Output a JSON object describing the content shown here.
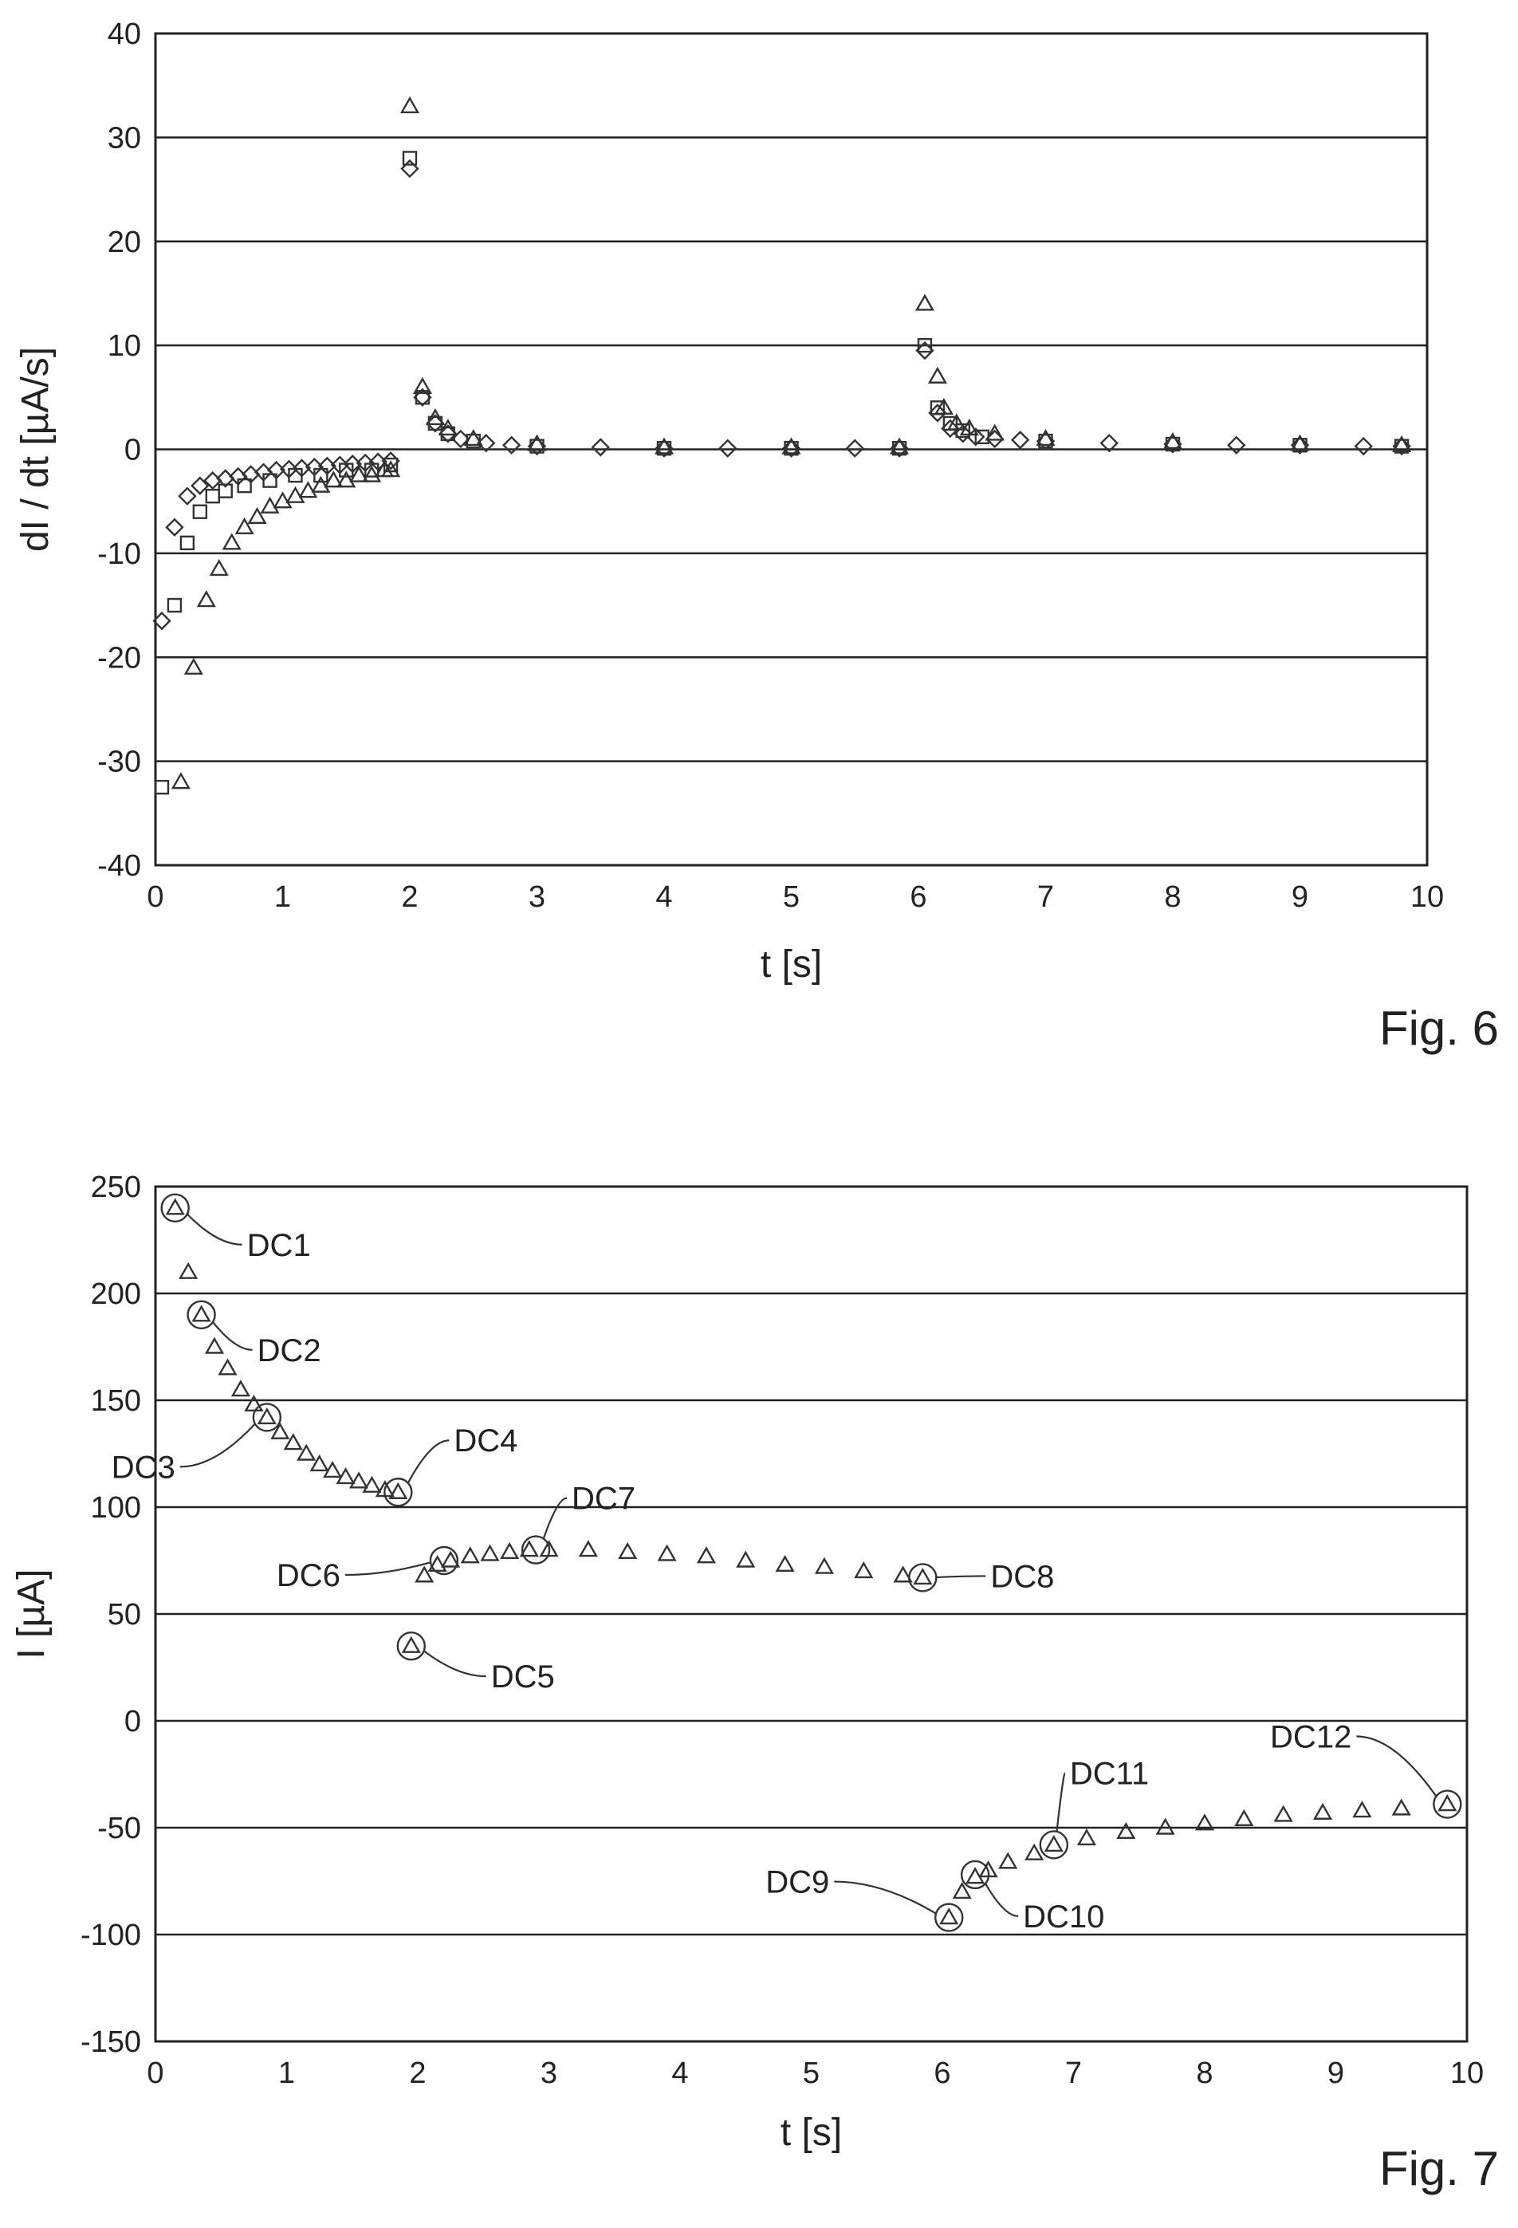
{
  "figures": [
    {
      "label": "Fig. 6"
    },
    {
      "label": "Fig. 7"
    }
  ],
  "chart_data": [
    {
      "type": "scatter",
      "figure_label": "Fig. 6",
      "xlabel": "t [s]",
      "ylabel": "dI / dt [µA/s]",
      "xlim": [
        0,
        10
      ],
      "ylim": [
        -40,
        40
      ],
      "x_ticks": [
        "0",
        "1",
        "2",
        "3",
        "4",
        "5",
        "6",
        "7",
        "8",
        "9",
        "10"
      ],
      "y_ticks": [
        "40",
        "30",
        "20",
        "10",
        "0",
        "-10",
        "-20",
        "-30",
        "-40"
      ],
      "grid": "horizontal",
      "series": [
        {
          "marker": "triangle",
          "x": [
            0.2,
            0.3,
            0.4,
            0.5,
            0.6,
            0.7,
            0.8,
            0.9,
            1.0,
            1.1,
            1.2,
            1.3,
            1.4,
            1.5,
            1.6,
            1.7,
            1.8,
            1.85,
            2.0,
            2.1,
            2.2,
            2.3,
            2.5,
            3.0,
            4.0,
            5.0,
            5.85,
            6.05,
            6.15,
            6.2,
            6.3,
            6.4,
            6.6,
            7.0,
            8.0,
            9.0,
            9.8
          ],
          "y": [
            -32,
            -21,
            -14.5,
            -11.5,
            -9,
            -7.5,
            -6.5,
            -5.5,
            -5,
            -4.5,
            -4,
            -3.5,
            -3,
            -3,
            -2.5,
            -2.5,
            -2,
            -2,
            33,
            6,
            3,
            2,
            1,
            0.5,
            0.2,
            0.2,
            0.2,
            14,
            7,
            4,
            2.5,
            2,
            1.5,
            1,
            0.7,
            0.5,
            0.4
          ]
        },
        {
          "marker": "square",
          "x": [
            0.05,
            0.15,
            0.25,
            0.35,
            0.45,
            0.55,
            0.7,
            0.9,
            1.1,
            1.3,
            1.5,
            1.7,
            1.85,
            2.0,
            2.1,
            2.2,
            2.3,
            2.5,
            3.0,
            4.0,
            5.0,
            5.85,
            6.05,
            6.15,
            6.25,
            6.35,
            6.5,
            7.0,
            8.0,
            9.0,
            9.8
          ],
          "y": [
            -32.5,
            -15,
            -9,
            -6,
            -4.5,
            -4,
            -3.5,
            -3,
            -2.5,
            -2.5,
            -2,
            -2,
            -1.5,
            28,
            5,
            2.5,
            1.5,
            0.8,
            0.3,
            0.1,
            0.1,
            0.1,
            10,
            4,
            2.5,
            1.8,
            1.2,
            0.8,
            0.5,
            0.4,
            0.3
          ]
        },
        {
          "marker": "diamond",
          "x": [
            0.05,
            0.15,
            0.25,
            0.35,
            0.45,
            0.55,
            0.65,
            0.75,
            0.85,
            0.95,
            1.05,
            1.15,
            1.25,
            1.35,
            1.45,
            1.55,
            1.65,
            1.75,
            1.85,
            2.0,
            2.1,
            2.2,
            2.3,
            2.4,
            2.6,
            2.8,
            3.0,
            3.5,
            4.0,
            4.5,
            5.0,
            5.5,
            5.85,
            6.05,
            6.15,
            6.25,
            6.35,
            6.45,
            6.6,
            6.8,
            7.0,
            7.5,
            8.0,
            8.5,
            9.0,
            9.5,
            9.8
          ],
          "y": [
            -16.5,
            -7.5,
            -4.5,
            -3.5,
            -3,
            -2.8,
            -2.6,
            -2.4,
            -2.2,
            -2,
            -1.9,
            -1.8,
            -1.7,
            -1.6,
            -1.5,
            -1.4,
            -1.3,
            -1.2,
            -1.1,
            27,
            5,
            2.5,
            1.5,
            1,
            0.6,
            0.4,
            0.3,
            0.2,
            0.1,
            0.1,
            0.1,
            0.1,
            0.1,
            9.5,
            3.5,
            2,
            1.5,
            1.2,
            1,
            0.9,
            0.8,
            0.6,
            0.5,
            0.4,
            0.4,
            0.3,
            0.3
          ]
        }
      ]
    },
    {
      "type": "scatter",
      "figure_label": "Fig. 7",
      "xlabel": "t [s]",
      "ylabel": "I [µA]",
      "xlim": [
        0,
        10
      ],
      "ylim": [
        -150,
        250
      ],
      "x_ticks": [
        "0",
        "1",
        "2",
        "3",
        "4",
        "5",
        "6",
        "7",
        "8",
        "9",
        "10"
      ],
      "y_ticks": [
        "250",
        "200",
        "150",
        "100",
        "50",
        "0",
        "-50",
        "-100",
        "-150"
      ],
      "grid": "horizontal",
      "series": [
        {
          "marker": "triangle",
          "x": [
            0.15,
            0.25,
            0.35,
            0.45,
            0.55,
            0.65,
            0.75,
            0.85,
            0.95,
            1.05,
            1.15,
            1.25,
            1.35,
            1.45,
            1.55,
            1.65,
            1.75,
            1.85,
            1.95,
            2.05,
            2.15,
            2.25,
            2.4,
            2.55,
            2.7,
            2.85,
            3.0,
            3.3,
            3.6,
            3.9,
            4.2,
            4.5,
            4.8,
            5.1,
            5.4,
            5.7,
            5.85,
            6.05,
            6.15,
            6.25,
            6.35,
            6.5,
            6.7,
            6.85,
            7.1,
            7.4,
            7.7,
            8.0,
            8.3,
            8.6,
            8.9,
            9.2,
            9.5,
            9.85
          ],
          "y": [
            240,
            210,
            190,
            175,
            165,
            155,
            148,
            142,
            135,
            130,
            125,
            120,
            117,
            114,
            112,
            110,
            108,
            107,
            35,
            68,
            73,
            75,
            77,
            78,
            79,
            80,
            80,
            80,
            79,
            78,
            77,
            75,
            73,
            72,
            70,
            68,
            67,
            -92,
            -80,
            -73,
            -70,
            -66,
            -62,
            -58,
            -55,
            -52,
            -50,
            -48,
            -46,
            -44,
            -43,
            -42,
            -41,
            -39
          ]
        }
      ],
      "annotations": [
        {
          "label": "DC1",
          "x": 0.15,
          "y": 240
        },
        {
          "label": "DC2",
          "x": 0.35,
          "y": 190
        },
        {
          "label": "DC3",
          "x": 0.85,
          "y": 142
        },
        {
          "label": "DC4",
          "x": 1.85,
          "y": 107
        },
        {
          "label": "DC5",
          "x": 1.95,
          "y": 35
        },
        {
          "label": "DC6",
          "x": 2.2,
          "y": 75
        },
        {
          "label": "DC7",
          "x": 2.9,
          "y": 80
        },
        {
          "label": "DC8",
          "x": 5.85,
          "y": 67
        },
        {
          "label": "DC9",
          "x": 6.05,
          "y": -92
        },
        {
          "label": "DC10",
          "x": 6.25,
          "y": -72
        },
        {
          "label": "DC11",
          "x": 6.85,
          "y": -58
        },
        {
          "label": "DC12",
          "x": 9.85,
          "y": -39
        }
      ]
    }
  ]
}
